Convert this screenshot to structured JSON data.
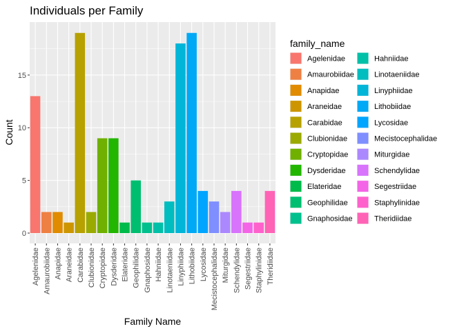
{
  "chart_data": {
    "type": "bar",
    "title": "Individuals per Family",
    "xlabel": "Family Name",
    "ylabel": "Count",
    "ylim": [
      0,
      19.9
    ],
    "yticks": [
      0,
      5,
      10,
      15
    ],
    "grid": true,
    "legend_position": "right",
    "legend_title": "family_name",
    "categories": [
      "Agelenidae",
      "Amaurobiidae",
      "Anapidae",
      "Araneidae",
      "Carabidae",
      "Clubionidae",
      "Cryptopidae",
      "Dysderidae",
      "Elateridae",
      "Geophilidae",
      "Gnaphosidae",
      "Hahniidae",
      "Linotaeniidae",
      "Linyphiidae",
      "Lithobiidae",
      "Lycosidae",
      "Mecistocephalidae",
      "Miturgidae",
      "Schendylidae",
      "Segestriidae",
      "Staphylinidae",
      "Theridiidae"
    ],
    "values": [
      13,
      2,
      2,
      1,
      19,
      2,
      9,
      9,
      1,
      5,
      1,
      1,
      3,
      18,
      19,
      4,
      3,
      2,
      4,
      1,
      1,
      4
    ],
    "colors": [
      "#F8766D",
      "#EE8043",
      "#E08B00",
      "#CD9600",
      "#B6A100",
      "#9AAA00",
      "#6FB000",
      "#22B600",
      "#00BA4A",
      "#00BE70",
      "#00C08E",
      "#00C0A8",
      "#00BDC0",
      "#00B5D8",
      "#00A9F6",
      "#00A5FF",
      "#7F8FFF",
      "#AC88FF",
      "#D873FC",
      "#F365E6",
      "#FF61CC",
      "#FF63B6"
    ]
  }
}
